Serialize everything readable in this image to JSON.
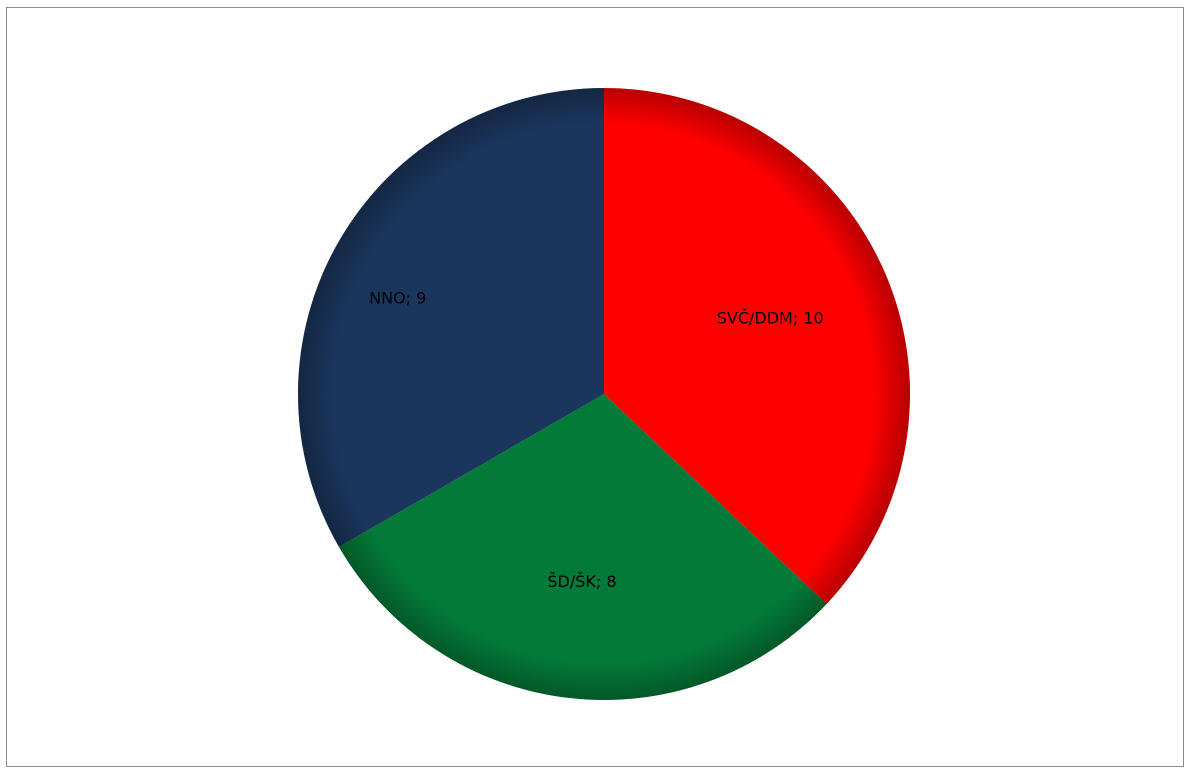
{
  "chart_data": {
    "type": "pie",
    "title": "",
    "slices": [
      {
        "label": "SVČ/DDM",
        "value": 10,
        "color": "#ff0000",
        "data_label": "SVČ/DDM; 10"
      },
      {
        "label": "ŠD/ŠK",
        "value": 8,
        "color": "#037a38",
        "data_label": "ŠD/ŠK; 8"
      },
      {
        "label": "NNO",
        "value": 9,
        "color": "#1b365d",
        "data_label": "NNO; 9"
      }
    ],
    "start_angle": "12 o'clock",
    "direction": "clockwise",
    "legend": "none"
  }
}
